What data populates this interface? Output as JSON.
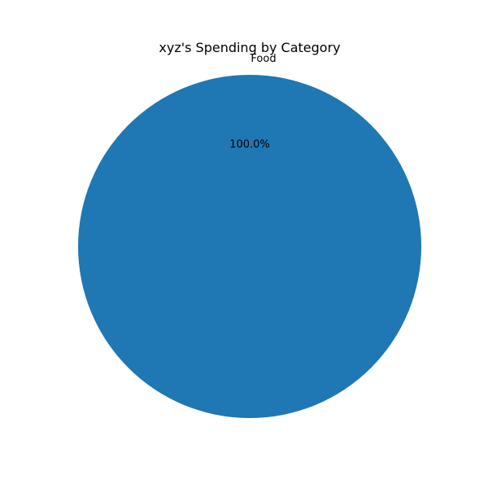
{
  "chart_data": {
    "type": "pie",
    "title": "xyz's Spending by Category",
    "slices": [
      {
        "label": "Food",
        "value": 100.0,
        "percent_label": "100.0%",
        "color": "#1f77b4"
      }
    ],
    "legend": "none"
  }
}
